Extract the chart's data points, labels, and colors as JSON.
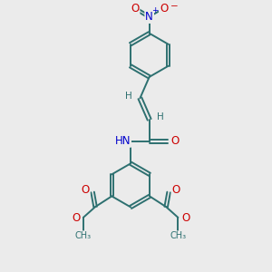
{
  "background_color": "#ebebeb",
  "bond_color": "#2d7070",
  "bond_width": 1.4,
  "text_colors": {
    "C": "#2d7070",
    "H": "#2d7070",
    "N": "#0000cc",
    "O": "#cc0000"
  },
  "font_size": 7.5,
  "xlim": [
    0,
    10
  ],
  "ylim": [
    0,
    10
  ]
}
